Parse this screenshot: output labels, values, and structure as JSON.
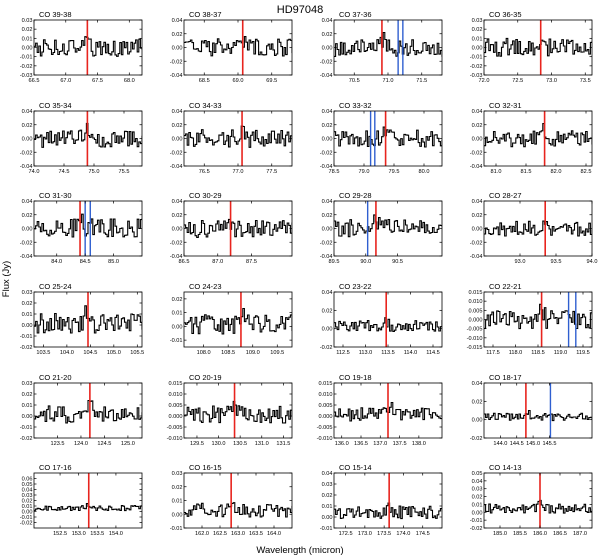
{
  "figure": {
    "title": "HD97048",
    "xlabel": "Wavelength (micron)",
    "ylabel": "Flux (Jy)"
  },
  "chart_data": [
    {
      "type": "line",
      "title": "CO 39-38",
      "xlim": [
        66.5,
        68.2
      ],
      "ylim": [
        -0.03,
        0.03
      ],
      "xticks": [
        66.5,
        67.0,
        67.5,
        68.0
      ],
      "yticks": [
        -0.03,
        -0.02,
        -0.01,
        0.0,
        0.01,
        0.02,
        0.03
      ],
      "ytick_decimals": 2,
      "red_lines": [
        67.34
      ],
      "blue_lines": [],
      "noise": 0.01,
      "seed": 1
    },
    {
      "type": "line",
      "title": "CO 38-37",
      "xlim": [
        68.2,
        69.8
      ],
      "ylim": [
        -0.04,
        0.04
      ],
      "xticks": [
        68.5,
        69.0,
        69.5
      ],
      "yticks": [
        -0.04,
        -0.02,
        0.0,
        0.02,
        0.04
      ],
      "ytick_decimals": 2,
      "red_lines": [
        69.07
      ],
      "blue_lines": [],
      "noise": 0.013,
      "seed": 2
    },
    {
      "type": "line",
      "title": "CO 37-36",
      "xlim": [
        70.2,
        71.8
      ],
      "ylim": [
        -0.04,
        0.04
      ],
      "xticks": [
        70.5,
        71.0,
        71.5
      ],
      "yticks": [
        -0.04,
        -0.02,
        0.0,
        0.02,
        0.04
      ],
      "ytick_decimals": 2,
      "red_lines": [
        70.91
      ],
      "blue_lines": [
        71.15,
        71.22
      ],
      "noise": 0.013,
      "seed": 3
    },
    {
      "type": "line",
      "title": "CO 36-35",
      "xlim": [
        72.0,
        73.6
      ],
      "ylim": [
        -0.03,
        0.03
      ],
      "xticks": [
        72.0,
        72.5,
        73.0,
        73.5
      ],
      "yticks": [
        -0.03,
        -0.02,
        -0.01,
        0.0,
        0.01,
        0.02,
        0.03
      ],
      "ytick_decimals": 2,
      "red_lines": [
        72.84
      ],
      "blue_lines": [],
      "noise": 0.01,
      "seed": 4
    },
    {
      "type": "line",
      "title": "CO 35-34",
      "xlim": [
        74.0,
        75.8
      ],
      "ylim": [
        -0.04,
        0.04
      ],
      "xticks": [
        74.0,
        74.5,
        75.0,
        75.5
      ],
      "yticks": [
        -0.04,
        -0.02,
        0.0,
        0.02,
        0.04
      ],
      "ytick_decimals": 2,
      "red_lines": [
        74.89
      ],
      "blue_lines": [],
      "noise": 0.013,
      "seed": 5
    },
    {
      "type": "line",
      "title": "CO 34-33",
      "xlim": [
        76.2,
        77.8
      ],
      "ylim": [
        -0.04,
        0.04
      ],
      "xticks": [
        76.5,
        77.0,
        77.5
      ],
      "yticks": [
        -0.04,
        -0.02,
        0.0,
        0.02,
        0.04
      ],
      "ytick_decimals": 2,
      "red_lines": [
        77.06
      ],
      "blue_lines": [],
      "noise": 0.013,
      "seed": 6
    },
    {
      "type": "line",
      "title": "CO 33-32",
      "xlim": [
        78.5,
        80.3
      ],
      "ylim": [
        -0.04,
        0.04
      ],
      "xticks": [
        78.5,
        79.0,
        79.5,
        80.0
      ],
      "yticks": [
        -0.04,
        -0.02,
        0.0,
        0.02,
        0.04
      ],
      "ytick_decimals": 2,
      "red_lines": [
        79.36
      ],
      "blue_lines": [
        79.11,
        79.18
      ],
      "noise": 0.013,
      "seed": 7
    },
    {
      "type": "line",
      "title": "CO 32-31",
      "xlim": [
        80.8,
        82.6
      ],
      "ylim": [
        -0.04,
        0.04
      ],
      "xticks": [
        81.0,
        81.5,
        82.0,
        82.5
      ],
      "yticks": [
        -0.04,
        -0.02,
        0.0,
        0.02,
        0.04
      ],
      "ytick_decimals": 2,
      "red_lines": [
        81.81
      ],
      "blue_lines": [],
      "noise": 0.013,
      "seed": 8
    },
    {
      "type": "line",
      "title": "CO 31-30",
      "xlim": [
        83.6,
        85.5
      ],
      "ylim": [
        -0.04,
        0.04
      ],
      "xticks": [
        84.0,
        84.5,
        85.0
      ],
      "yticks": [
        -0.04,
        -0.02,
        0.0,
        0.02,
        0.04
      ],
      "ytick_decimals": 2,
      "red_lines": [
        84.41
      ],
      "blue_lines": [
        84.5,
        84.59
      ],
      "noise": 0.014,
      "seed": 9
    },
    {
      "type": "line",
      "title": "CO 30-29",
      "xlim": [
        86.5,
        88.1
      ],
      "ylim": [
        -0.04,
        0.04
      ],
      "xticks": [
        86.5,
        87.0,
        87.5
      ],
      "yticks": [
        -0.04,
        -0.02,
        0.0,
        0.02,
        0.04
      ],
      "ytick_decimals": 2,
      "red_lines": [
        87.19
      ],
      "blue_lines": [],
      "noise": 0.013,
      "seed": 10
    },
    {
      "type": "line",
      "title": "CO 29-28",
      "xlim": [
        89.5,
        91.2
      ],
      "ylim": [
        -0.04,
        0.04
      ],
      "xticks": [
        89.5,
        90.0,
        90.5
      ],
      "yticks": [
        -0.04,
        -0.02,
        0.0,
        0.02,
        0.04
      ],
      "ytick_decimals": 2,
      "red_lines": [
        90.16
      ],
      "blue_lines": [
        90.03
      ],
      "noise": 0.013,
      "seed": 11
    },
    {
      "type": "line",
      "title": "CO 28-27",
      "xlim": [
        92.5,
        94.0
      ],
      "ylim": [
        -0.04,
        0.04
      ],
      "xticks": [
        93.0,
        93.5,
        94.0
      ],
      "yticks": [
        -0.04,
        -0.02,
        0.0,
        0.02,
        0.04
      ],
      "ytick_decimals": 2,
      "red_lines": [
        93.35
      ],
      "blue_lines": [],
      "noise": 0.011,
      "seed": 12
    },
    {
      "type": "line",
      "title": "CO 25-24",
      "xlim": [
        103.3,
        105.6
      ],
      "ylim": [
        -0.02,
        0.03
      ],
      "xticks": [
        103.5,
        104.0,
        104.5,
        105.0,
        105.5
      ],
      "yticks": [
        -0.02,
        -0.01,
        0.0,
        0.01,
        0.02,
        0.03
      ],
      "ytick_decimals": 2,
      "red_lines": [
        104.45
      ],
      "blue_lines": [],
      "noise": 0.009,
      "seed": 13
    },
    {
      "type": "line",
      "title": "CO 24-23",
      "xlim": [
        107.6,
        109.8
      ],
      "ylim": [
        -0.015,
        0.025
      ],
      "xticks": [
        108.0,
        108.5,
        109.0,
        109.5
      ],
      "yticks": [
        -0.01,
        0.0,
        0.01,
        0.02
      ],
      "ytick_decimals": 2,
      "red_lines": [
        108.76
      ],
      "blue_lines": [],
      "noise": 0.007,
      "seed": 14
    },
    {
      "type": "line",
      "title": "CO 23-22",
      "xlim": [
        112.3,
        114.7
      ],
      "ylim": [
        -0.02,
        0.04
      ],
      "xticks": [
        112.5,
        113.0,
        113.5,
        114.0,
        114.5
      ],
      "yticks": [
        -0.02,
        0.0,
        0.02,
        0.04
      ],
      "ytick_decimals": 2,
      "red_lines": [
        113.46
      ],
      "blue_lines": [],
      "noise": 0.006,
      "seed": 15
    },
    {
      "type": "line",
      "title": "CO 22-21",
      "xlim": [
        117.3,
        119.7
      ],
      "ylim": [
        -0.015,
        0.015
      ],
      "xticks": [
        117.5,
        118.0,
        118.5,
        119.0,
        119.5
      ],
      "yticks": [
        -0.015,
        -0.01,
        -0.005,
        0.0,
        0.005,
        0.01,
        0.015
      ],
      "ytick_decimals": 3,
      "red_lines": [
        118.58
      ],
      "blue_lines": [
        119.18,
        119.34
      ],
      "noise": 0.005,
      "seed": 16
    },
    {
      "type": "line",
      "title": "CO 21-20",
      "xlim": [
        123.0,
        125.3
      ],
      "ylim": [
        -0.02,
        0.03
      ],
      "xticks": [
        123.5,
        124.0,
        124.5,
        125.0
      ],
      "yticks": [
        -0.02,
        -0.01,
        0.0,
        0.01,
        0.02,
        0.03
      ],
      "ytick_decimals": 2,
      "red_lines": [
        124.19
      ],
      "blue_lines": [],
      "noise": 0.008,
      "seed": 17
    },
    {
      "type": "line",
      "title": "CO 20-19",
      "xlim": [
        129.2,
        131.7
      ],
      "ylim": [
        -0.01,
        0.015
      ],
      "xticks": [
        129.5,
        130.0,
        130.5,
        131.0,
        131.5
      ],
      "yticks": [
        -0.01,
        -0.005,
        0.0,
        0.005,
        0.01,
        0.015
      ],
      "ytick_decimals": 3,
      "red_lines": [
        130.37
      ],
      "blue_lines": [],
      "noise": 0.004,
      "seed": 18
    },
    {
      "type": "line",
      "title": "CO 19-18",
      "xlim": [
        135.8,
        138.6
      ],
      "ylim": [
        -0.01,
        0.015
      ],
      "xticks": [
        136.0,
        136.5,
        137.0,
        137.5,
        138.0
      ],
      "yticks": [
        -0.01,
        -0.005,
        0.0,
        0.005,
        0.01,
        0.015
      ],
      "ytick_decimals": 3,
      "red_lines": [
        137.2
      ],
      "blue_lines": [],
      "noise": 0.003,
      "seed": 19
    },
    {
      "type": "line",
      "title": "CO 18-17",
      "xlim": [
        143.5,
        146.8
      ],
      "ylim": [
        -0.02,
        0.04
      ],
      "xticks": [
        144.0,
        144.5,
        145.0,
        145.5
      ],
      "yticks": [
        -0.02,
        0.0,
        0.02,
        0.04
      ],
      "ytick_decimals": 2,
      "red_lines": [
        144.78
      ],
      "blue_lines": [
        145.53
      ],
      "noise": 0.004,
      "seed": 20
    },
    {
      "type": "line",
      "title": "CO 17-16",
      "xlim": [
        151.8,
        154.7
      ],
      "ylim": [
        -0.03,
        0.07
      ],
      "xticks": [
        152.5,
        153.0,
        153.5,
        154.0
      ],
      "yticks": [
        -0.02,
        -0.01,
        0.0,
        0.01,
        0.02,
        0.03,
        0.04,
        0.05,
        0.06
      ],
      "ytick_decimals": 2,
      "red_lines": [
        153.27
      ],
      "blue_lines": [],
      "noise": 0.005,
      "seed": 21
    },
    {
      "type": "line",
      "title": "CO 16-15",
      "xlim": [
        161.5,
        164.5
      ],
      "ylim": [
        -0.01,
        0.03
      ],
      "xticks": [
        162.0,
        162.5,
        163.0,
        163.5,
        164.0
      ],
      "yticks": [
        -0.01,
        0.0,
        0.01,
        0.02,
        0.03
      ],
      "ytick_decimals": 2,
      "red_lines": [
        162.81
      ],
      "blue_lines": [],
      "noise": 0.005,
      "seed": 22
    },
    {
      "type": "line",
      "title": "CO 15-14",
      "xlim": [
        172.2,
        175.0
      ],
      "ylim": [
        -0.01,
        0.04
      ],
      "xticks": [
        172.5,
        173.0,
        173.5,
        174.0,
        174.5
      ],
      "yticks": [
        -0.01,
        0.0,
        0.01,
        0.02,
        0.03,
        0.04
      ],
      "ytick_decimals": 2,
      "red_lines": [
        173.63
      ],
      "blue_lines": [],
      "noise": 0.006,
      "seed": 23
    },
    {
      "type": "line",
      "title": "CO 14-13",
      "xlim": [
        184.6,
        187.3
      ],
      "ylim": [
        -0.02,
        0.05
      ],
      "xticks": [
        185.0,
        185.5,
        186.0,
        186.5,
        187.0
      ],
      "yticks": [
        -0.02,
        -0.01,
        0.0,
        0.01,
        0.02,
        0.03,
        0.04,
        0.05
      ],
      "ytick_decimals": 2,
      "red_lines": [
        186.0
      ],
      "blue_lines": [],
      "noise": 0.006,
      "seed": 24
    }
  ],
  "colors": {
    "axis": "#000000",
    "spectrum": "#000000",
    "red_line": "#e8241e",
    "blue_line": "#2f5fd0"
  }
}
